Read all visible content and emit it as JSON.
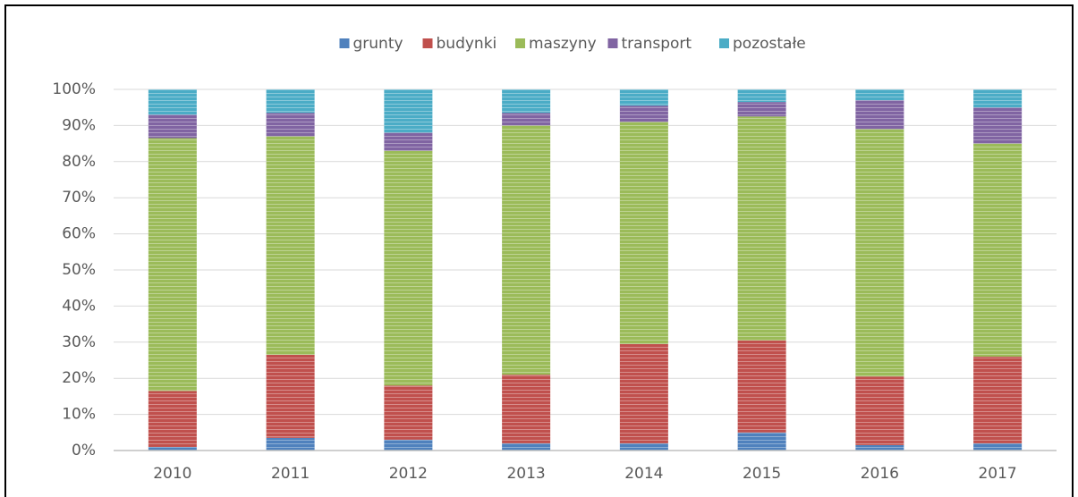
{
  "chart_data": {
    "type": "stacked_bar_100",
    "categories": [
      "2010",
      "2011",
      "2012",
      "2013",
      "2014",
      "2015",
      "2016",
      "2017"
    ],
    "series": [
      {
        "name": "grunty",
        "color": "#4f81bd",
        "values": [
          1,
          3.5,
          3,
          2,
          2,
          5,
          1.5,
          2
        ]
      },
      {
        "name": "budynki",
        "color": "#c0504d",
        "values": [
          15.5,
          23,
          15,
          19,
          27.5,
          25.5,
          19,
          24
        ]
      },
      {
        "name": "maszyny",
        "color": "#9bbb59",
        "values": [
          70,
          60.5,
          65,
          69,
          61.5,
          62,
          68.5,
          59
        ]
      },
      {
        "name": "transport",
        "color": "#8064a2",
        "values": [
          6.5,
          6.5,
          5,
          3.5,
          4.5,
          4,
          8,
          10
        ]
      },
      {
        "name": "pozostałe",
        "color": "#4bacc6",
        "values": [
          7,
          6.5,
          12,
          6.5,
          4.5,
          3.5,
          3,
          5
        ]
      }
    ],
    "ylim": [
      0,
      100
    ],
    "yticks": [
      {
        "value": 0,
        "label": "0%"
      },
      {
        "value": 10,
        "label": "10%"
      },
      {
        "value": 20,
        "label": "20%"
      },
      {
        "value": 30,
        "label": "30%"
      },
      {
        "value": 40,
        "label": "40%"
      },
      {
        "value": 50,
        "label": "50%"
      },
      {
        "value": 60,
        "label": "60%"
      },
      {
        "value": 70,
        "label": "70%"
      },
      {
        "value": 80,
        "label": "80%"
      },
      {
        "value": 90,
        "label": "90%"
      },
      {
        "value": 100,
        "label": "100%"
      }
    ],
    "grid": true,
    "legend": "top"
  }
}
